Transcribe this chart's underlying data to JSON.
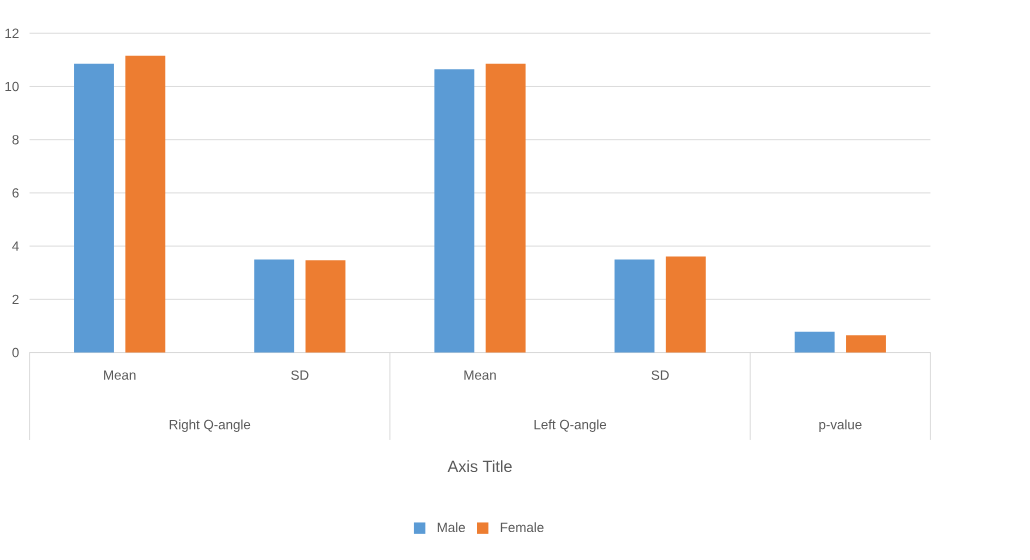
{
  "chart_data": {
    "type": "bar",
    "xlabel": "Axis Title",
    "categories": [
      "Mean",
      "SD",
      "Mean",
      "SD",
      null
    ],
    "series": [
      {
        "name": "Male",
        "color": "#5b9bd5",
        "values": [
          10.85,
          3.5,
          10.65,
          3.5,
          0.78
        ]
      },
      {
        "name": "Female",
        "color": "#ed7d31",
        "values": [
          11.15,
          3.47,
          10.85,
          3.61,
          0.65
        ]
      }
    ],
    "annotations": [
      "Right Q-angle",
      "Left Q-angle",
      "p-value"
    ],
    "ylim": [
      0,
      12
    ],
    "yticks": [
      0,
      2,
      4,
      6,
      8,
      10,
      12
    ],
    "grid": "y",
    "legend": "bottom"
  }
}
